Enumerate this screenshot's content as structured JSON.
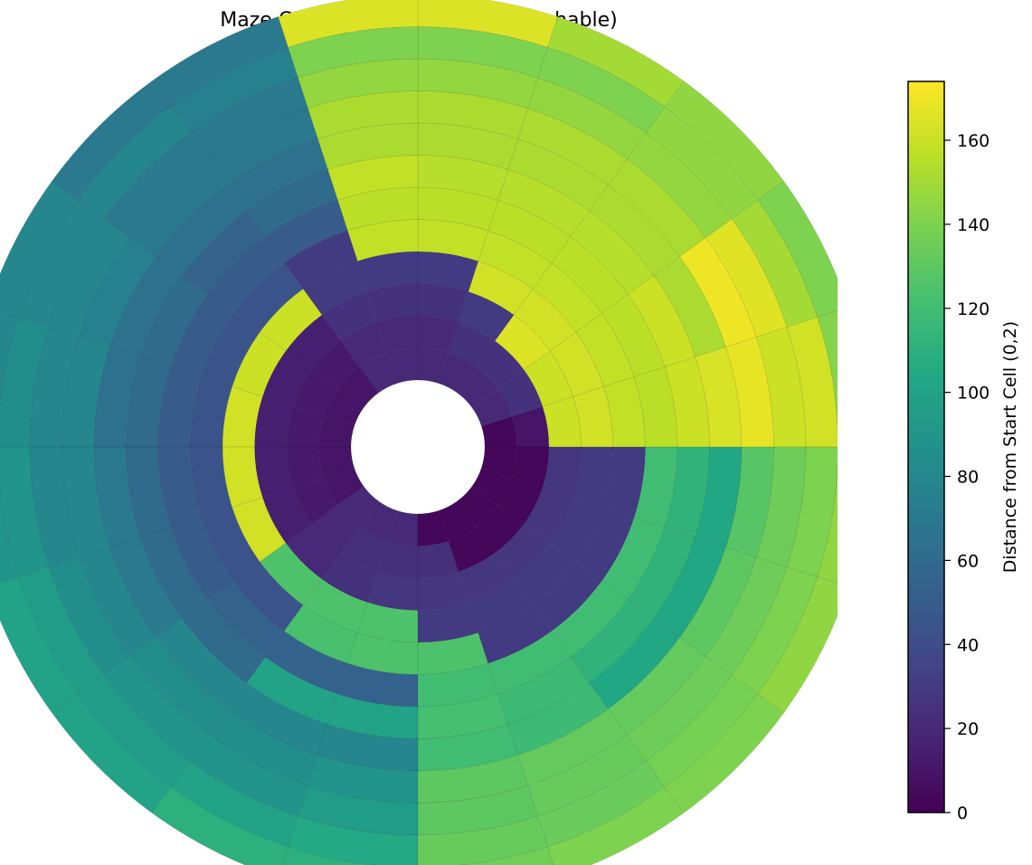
{
  "chart_data": {
    "type": "heatmap",
    "subtype": "polar-maze",
    "title": "Maze Connectivity (240/240 Reachable)",
    "rings": 12,
    "sectors_per_ring": 20,
    "colormap": "viridis",
    "colorbar": {
      "label": "Distance from Start Cell (0,2)",
      "min": 0,
      "max": 174,
      "ticks": [
        0,
        20,
        40,
        60,
        80,
        100,
        120,
        140,
        160
      ]
    },
    "ring_values": [
      [
        3,
        20,
        20,
        20,
        20,
        20,
        20,
        10,
        10,
        10,
        10,
        10,
        20,
        20,
        20,
        3,
        3,
        3,
        3,
        3
      ],
      [
        10,
        25,
        25,
        25,
        20,
        20,
        20,
        12,
        12,
        12,
        12,
        12,
        20,
        24,
        24,
        24,
        3,
        3,
        3,
        3
      ],
      [
        160,
        160,
        165,
        30,
        25,
        25,
        25,
        15,
        15,
        15,
        15,
        15,
        20,
        24,
        28,
        28,
        28,
        28,
        27,
        27
      ],
      [
        162,
        162,
        162,
        162,
        30,
        30,
        30,
        160,
        160,
        162,
        162,
        162,
        125,
        125,
        125,
        30,
        30,
        30,
        30,
        30
      ],
      [
        158,
        158,
        158,
        158,
        158,
        158,
        30,
        45,
        45,
        45,
        45,
        45,
        45,
        123,
        125,
        125,
        30,
        30,
        30,
        30
      ],
      [
        156,
        156,
        156,
        156,
        156,
        156,
        50,
        50,
        50,
        50,
        50,
        50,
        55,
        55,
        55,
        120,
        120,
        120,
        120,
        120
      ],
      [
        160,
        160,
        155,
        155,
        155,
        158,
        60,
        55,
        60,
        60,
        60,
        60,
        60,
        100,
        100,
        122,
        118,
        112,
        112,
        112
      ],
      [
        164,
        152,
        152,
        152,
        152,
        152,
        65,
        65,
        65,
        65,
        70,
        70,
        80,
        80,
        80,
        120,
        118,
        104,
        104,
        104
      ],
      [
        168,
        170,
        152,
        152,
        152,
        152,
        70,
        70,
        75,
        80,
        80,
        80,
        85,
        85,
        90,
        130,
        132,
        132,
        130,
        128
      ],
      [
        160,
        166,
        146,
        146,
        146,
        146,
        70,
        70,
        80,
        80,
        80,
        85,
        90,
        90,
        95,
        130,
        133,
        135,
        135,
        135
      ],
      [
        162,
        150,
        145,
        140,
        140,
        140,
        75,
        80,
        80,
        85,
        90,
        95,
        95,
        100,
        105,
        133,
        134,
        138,
        140,
        140
      ],
      [
        142,
        140,
        145,
        150,
        165,
        165,
        70,
        70,
        80,
        80,
        90,
        100,
        100,
        110,
        110,
        136,
        140,
        140,
        145,
        145
      ]
    ]
  }
}
